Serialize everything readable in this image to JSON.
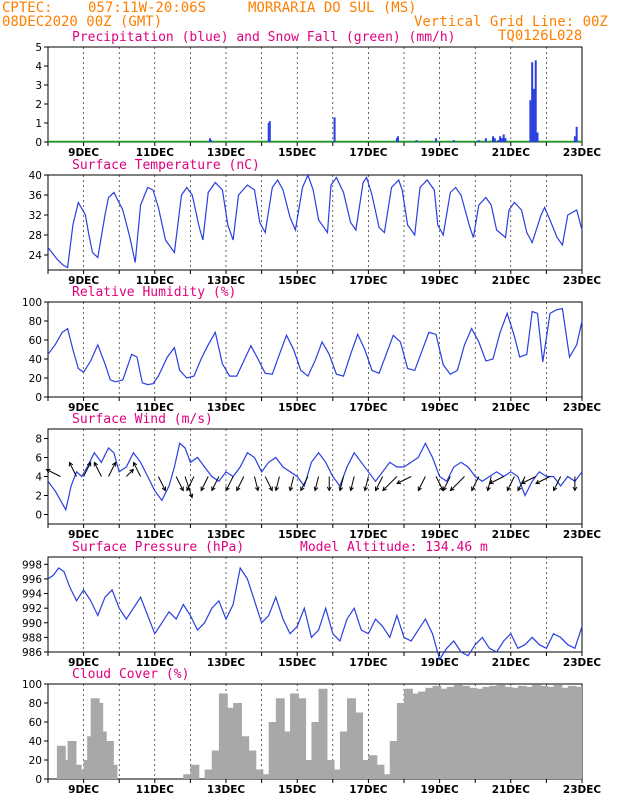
{
  "header": {
    "source": "CPTEC:",
    "coords": "057:11W-20:06S",
    "station": "MORRARIA DO SUL (MS)",
    "run": "08DEC2020 00Z (GMT)",
    "grid_note": "Vertical Grid Line: 00Z",
    "code": "TQ0126L028"
  },
  "colors": {
    "header": "#ff7f00",
    "panel_title": "#e0007f",
    "series": "#2a3fe0",
    "snow": "#1aa01a",
    "cloud": "#a8a8a8",
    "axis": "#000000"
  },
  "chart_data": [
    {
      "type": "bar",
      "title": "Precipitation (blue) and Snow Fall (green) (mm/h)",
      "ylim": [
        0,
        5
      ],
      "yticks": [
        "0",
        "1",
        "2",
        "3",
        "4",
        "5"
      ],
      "xticks": [
        "9DEC",
        "11DEC",
        "13DEC",
        "15DEC",
        "17DEC",
        "19DEC",
        "21DEC",
        "23DEC"
      ],
      "xrange_days": [
        8,
        23
      ],
      "series": [
        {
          "name": "Precipitation",
          "x": [
            12.55,
            12.58,
            14.2,
            14.23,
            16.05,
            17.8,
            17.83,
            18.35,
            18.9,
            19.4,
            20.1,
            20.3,
            20.5,
            20.55,
            20.65,
            20.7,
            20.75,
            20.8,
            20.85,
            21.55,
            21.6,
            21.65,
            21.7,
            21.75,
            22.8,
            22.85
          ],
          "values": [
            0.2,
            0.1,
            1.0,
            1.1,
            1.3,
            0.2,
            0.3,
            0.1,
            0.2,
            0.1,
            0.1,
            0.2,
            0.3,
            0.2,
            0.1,
            0.3,
            0.2,
            0.4,
            0.2,
            2.2,
            4.2,
            2.8,
            4.3,
            0.5,
            0.3,
            0.8
          ]
        },
        {
          "name": "Snow Fall",
          "x": [],
          "values": []
        }
      ]
    },
    {
      "type": "line",
      "title": "Surface Temperature (nC)",
      "ylim": [
        21,
        40
      ],
      "yticks": [
        "24",
        "28",
        "32",
        "36",
        "40"
      ],
      "xticks": [
        "9DEC",
        "11DEC",
        "13DEC",
        "15DEC",
        "17DEC",
        "19DEC",
        "21DEC",
        "23DEC"
      ],
      "xrange_days": [
        8,
        23
      ],
      "x": [
        8,
        8.25,
        8.42,
        8.55,
        8.7,
        8.85,
        9.05,
        9.15,
        9.25,
        9.4,
        9.6,
        9.7,
        9.85,
        10.1,
        10.3,
        10.45,
        10.6,
        10.8,
        10.95,
        11.1,
        11.3,
        11.55,
        11.75,
        11.9,
        12.05,
        12.25,
        12.35,
        12.5,
        12.7,
        12.9,
        13.05,
        13.2,
        13.35,
        13.6,
        13.8,
        13.95,
        14.1,
        14.3,
        14.45,
        14.6,
        14.8,
        14.95,
        15.15,
        15.3,
        15.45,
        15.6,
        15.85,
        15.95,
        16.1,
        16.3,
        16.5,
        16.65,
        16.85,
        16.95,
        17.1,
        17.3,
        17.45,
        17.65,
        17.85,
        17.95,
        18.1,
        18.3,
        18.45,
        18.65,
        18.85,
        18.95,
        19.1,
        19.3,
        19.45,
        19.6,
        19.85,
        19.95,
        20.1,
        20.3,
        20.45,
        20.6,
        20.85,
        20.95,
        21.1,
        21.3,
        21.45,
        21.6,
        21.85,
        21.95,
        22.1,
        22.3,
        22.45,
        22.6,
        22.85,
        23
      ],
      "values": [
        25.5,
        23.2,
        22.0,
        21.5,
        30.0,
        34.5,
        32.0,
        28.0,
        24.5,
        23.5,
        32.0,
        35.5,
        36.5,
        33.0,
        27.5,
        22.5,
        34.0,
        37.5,
        37.0,
        33.5,
        27.0,
        24.5,
        36.0,
        37.5,
        36.0,
        29.5,
        27.0,
        36.5,
        38.5,
        37.0,
        30.0,
        27.0,
        36.0,
        38.0,
        37.0,
        30.5,
        28.5,
        37.5,
        39.0,
        37.0,
        31.5,
        29.0,
        37.5,
        40.0,
        37.0,
        31.0,
        28.5,
        38.0,
        39.5,
        36.5,
        30.5,
        29.0,
        38.5,
        39.5,
        36.0,
        29.5,
        28.5,
        37.5,
        39.0,
        37.0,
        30.0,
        28.0,
        37.5,
        39.0,
        37.0,
        30.0,
        28.0,
        36.5,
        37.5,
        36.0,
        29.5,
        27.5,
        34.0,
        35.5,
        34.0,
        29.0,
        27.5,
        33.0,
        34.5,
        33.0,
        28.5,
        26.5,
        32.0,
        33.5,
        31.0,
        27.5,
        26.0,
        32.0,
        33.0,
        29.0
      ]
    },
    {
      "type": "line",
      "title": "Relative Humidity (%)",
      "ylim": [
        0,
        100
      ],
      "yticks": [
        "0",
        "20",
        "40",
        "60",
        "80",
        "100"
      ],
      "xticks": [
        "9DEC",
        "11DEC",
        "13DEC",
        "15DEC",
        "17DEC",
        "19DEC",
        "21DEC",
        "23DEC"
      ],
      "xrange_days": [
        8,
        23
      ],
      "x": [
        8,
        8.2,
        8.4,
        8.55,
        8.7,
        8.85,
        9.0,
        9.2,
        9.4,
        9.6,
        9.75,
        9.9,
        10.1,
        10.35,
        10.5,
        10.65,
        10.8,
        10.95,
        11.1,
        11.35,
        11.55,
        11.7,
        11.9,
        12.1,
        12.3,
        12.5,
        12.7,
        12.9,
        13.1,
        13.3,
        13.55,
        13.7,
        13.9,
        14.1,
        14.3,
        14.5,
        14.7,
        14.9,
        15.1,
        15.3,
        15.5,
        15.7,
        15.9,
        16.1,
        16.3,
        16.5,
        16.7,
        16.9,
        17.1,
        17.3,
        17.5,
        17.7,
        17.9,
        18.1,
        18.3,
        18.5,
        18.7,
        18.9,
        19.1,
        19.3,
        19.5,
        19.7,
        19.9,
        20.1,
        20.3,
        20.5,
        20.7,
        20.9,
        21.1,
        21.25,
        21.45,
        21.6,
        21.75,
        21.9,
        22.1,
        22.3,
        22.45,
        22.65,
        22.85,
        23
      ],
      "values": [
        45,
        55,
        68,
        72,
        50,
        30,
        26,
        38,
        55,
        35,
        18,
        16,
        18,
        45,
        42,
        15,
        13,
        14,
        22,
        42,
        52,
        28,
        20,
        22,
        40,
        55,
        68,
        35,
        22,
        22,
        42,
        54,
        40,
        25,
        24,
        45,
        65,
        50,
        28,
        22,
        38,
        58,
        45,
        24,
        22,
        45,
        66,
        50,
        28,
        25,
        45,
        65,
        58,
        30,
        28,
        48,
        68,
        66,
        34,
        24,
        28,
        55,
        72,
        58,
        38,
        40,
        68,
        88,
        64,
        42,
        45,
        90,
        88,
        37,
        88,
        92,
        93,
        42,
        55,
        80
      ]
    },
    {
      "type": "line",
      "title": "Surface Wind (m/s)",
      "ylim": [
        -1,
        9
      ],
      "yticks": [
        "0",
        "2",
        "4",
        "6",
        "8"
      ],
      "xticks": [
        "9DEC",
        "11DEC",
        "13DEC",
        "15DEC",
        "17DEC",
        "19DEC",
        "21DEC",
        "23DEC"
      ],
      "xrange_days": [
        8,
        23
      ],
      "x": [
        8,
        8.2,
        8.35,
        8.5,
        8.65,
        8.8,
        8.95,
        9.1,
        9.3,
        9.5,
        9.7,
        9.85,
        10.0,
        10.2,
        10.4,
        10.6,
        10.8,
        11.0,
        11.2,
        11.4,
        11.55,
        11.7,
        11.85,
        12.0,
        12.2,
        12.4,
        12.6,
        12.8,
        13.0,
        13.2,
        13.4,
        13.6,
        13.8,
        14.0,
        14.2,
        14.4,
        14.6,
        14.8,
        15.0,
        15.2,
        15.4,
        15.6,
        15.8,
        16.0,
        16.2,
        16.4,
        16.6,
        16.8,
        17.0,
        17.2,
        17.4,
        17.6,
        17.8,
        18.0,
        18.2,
        18.4,
        18.6,
        18.8,
        19.0,
        19.2,
        19.4,
        19.6,
        19.8,
        20.0,
        20.2,
        20.4,
        20.6,
        20.8,
        21.0,
        21.2,
        21.4,
        21.6,
        21.8,
        22.0,
        22.2,
        22.4,
        22.6,
        22.8,
        23
      ],
      "values": [
        3.5,
        2.5,
        1.5,
        0.5,
        3.0,
        4.5,
        4.0,
        5.0,
        6.5,
        5.5,
        7.0,
        6.5,
        4.5,
        5.0,
        6.5,
        5.5,
        4.0,
        2.5,
        1.5,
        3.0,
        5.0,
        7.5,
        7.0,
        5.5,
        6.0,
        5.0,
        4.0,
        3.5,
        4.5,
        4.0,
        5.0,
        6.5,
        6.0,
        4.5,
        5.5,
        6.0,
        5.0,
        4.5,
        4.0,
        3.0,
        5.5,
        6.5,
        5.5,
        4.0,
        3.0,
        5.0,
        6.5,
        5.5,
        4.5,
        3.5,
        4.5,
        5.5,
        5.0,
        5.0,
        5.5,
        6.0,
        7.5,
        6.0,
        4.0,
        3.5,
        5.0,
        5.5,
        5.0,
        4.0,
        3.5,
        4.0,
        4.5,
        4.0,
        4.5,
        4.0,
        2.0,
        3.5,
        4.5,
        4.0,
        4.0,
        3.0,
        4.0,
        3.5,
        4.5
      ],
      "vectors": {
        "x": [
          8.35,
          8.8,
          9.0,
          9.5,
          9.7,
          10.2,
          10.6,
          11.1,
          11.6,
          11.85,
          12.1,
          12.5,
          12.8,
          13.2,
          13.5,
          13.8,
          14.1,
          14.5,
          14.9,
          15.3,
          15.6,
          15.9,
          16.3,
          16.6,
          17.0,
          17.4,
          17.8,
          18.2,
          18.6,
          18.9,
          19.3,
          19.7,
          20.1,
          20.45,
          20.8,
          21.1,
          21.4,
          21.7,
          22.1,
          22.4,
          22.8
        ],
        "u": [
          -2,
          -1,
          1,
          -1,
          1,
          1,
          -1,
          1,
          1,
          1,
          -1,
          -1,
          -1,
          -1,
          -1,
          0.5,
          1,
          -0.5,
          -0.5,
          -1,
          -0.5,
          0,
          -0.5,
          -0.5,
          -0.5,
          -1,
          -2,
          -2,
          -1,
          1,
          -1,
          -2,
          -1,
          -0.5,
          -2,
          -1,
          -1,
          -2,
          -2,
          -1,
          0
        ],
        "v": [
          1,
          2,
          2,
          2,
          2,
          1,
          2,
          -2,
          -2,
          -3,
          -2,
          -2,
          -2,
          -2,
          -2,
          -2,
          -2,
          -2,
          -2,
          -2,
          -2,
          -2,
          -2,
          -2,
          -2,
          -2,
          -2,
          -1,
          -2,
          -2,
          -2,
          -2,
          -2,
          -2,
          -1,
          -2,
          -2,
          -1,
          -1,
          -2,
          -2
        ]
      }
    },
    {
      "type": "line",
      "title": "Surface Pressure (hPa)",
      "subtitle": "Model Altitude: 134.46 m",
      "ylim": [
        986,
        999
      ],
      "yticks": [
        "986",
        "988",
        "990",
        "992",
        "994",
        "996",
        "998"
      ],
      "xticks": [
        "9DEC",
        "11DEC",
        "13DEC",
        "15DEC",
        "17DEC",
        "19DEC",
        "21DEC",
        "23DEC"
      ],
      "xrange_days": [
        8,
        23
      ],
      "x": [
        8,
        8.15,
        8.3,
        8.45,
        8.6,
        8.8,
        9.0,
        9.2,
        9.4,
        9.6,
        9.8,
        10.0,
        10.2,
        10.4,
        10.6,
        10.8,
        11.0,
        11.2,
        11.4,
        11.6,
        11.8,
        12.0,
        12.2,
        12.4,
        12.6,
        12.8,
        13.0,
        13.2,
        13.4,
        13.6,
        13.8,
        14.0,
        14.2,
        14.4,
        14.6,
        14.8,
        15.0,
        15.2,
        15.4,
        15.6,
        15.8,
        16.0,
        16.2,
        16.4,
        16.6,
        16.8,
        17.0,
        17.2,
        17.4,
        17.6,
        17.8,
        18.0,
        18.2,
        18.4,
        18.6,
        18.8,
        19.0,
        19.2,
        19.4,
        19.6,
        19.8,
        20.0,
        20.2,
        20.4,
        20.6,
        20.8,
        21.0,
        21.2,
        21.4,
        21.6,
        21.8,
        22.0,
        22.2,
        22.4,
        22.6,
        22.8,
        23
      ],
      "values": [
        996.0,
        996.5,
        997.5,
        997.0,
        995.0,
        993.0,
        994.5,
        993.0,
        991.0,
        993.5,
        994.5,
        992.0,
        990.5,
        992.0,
        993.5,
        991.0,
        988.5,
        990.0,
        991.5,
        990.5,
        992.5,
        991.0,
        989.0,
        990.0,
        992.0,
        993.0,
        990.5,
        992.5,
        997.5,
        996.0,
        993.0,
        990.0,
        991.0,
        993.5,
        990.5,
        988.5,
        989.5,
        992.0,
        988.0,
        989.0,
        992.0,
        988.5,
        987.5,
        990.5,
        992.0,
        989.0,
        988.5,
        990.5,
        989.5,
        988.0,
        991.0,
        988.0,
        987.5,
        989.0,
        990.5,
        988.5,
        985.0,
        986.5,
        987.5,
        986.0,
        985.5,
        987.0,
        988.0,
        986.5,
        986.0,
        987.5,
        988.5,
        986.5,
        987.0,
        988.0,
        987.0,
        986.5,
        988.5,
        988.0,
        987.0,
        986.5,
        989.5
      ]
    },
    {
      "type": "bar",
      "title": "Cloud Cover (%)",
      "ylim": [
        0,
        100
      ],
      "yticks": [
        "0",
        "20",
        "40",
        "60",
        "80",
        "100"
      ],
      "xticks": [
        "9DEC",
        "11DEC",
        "13DEC",
        "15DEC",
        "17DEC",
        "19DEC",
        "21DEC",
        "23DEC"
      ],
      "xrange_days": [
        8,
        23
      ],
      "x": [
        8,
        8.25,
        8.4,
        8.55,
        8.7,
        8.85,
        9.0,
        9.1,
        9.2,
        9.3,
        9.4,
        9.5,
        9.6,
        9.7,
        9.8,
        10.0,
        10.2,
        10.4,
        10.6,
        10.8,
        11.0,
        11.2,
        11.4,
        11.6,
        11.8,
        12.0,
        12.2,
        12.4,
        12.6,
        12.8,
        13.0,
        13.2,
        13.4,
        13.6,
        13.8,
        14.0,
        14.2,
        14.4,
        14.6,
        14.8,
        15.0,
        15.2,
        15.4,
        15.6,
        15.8,
        16.0,
        16.2,
        16.4,
        16.6,
        16.8,
        17.0,
        17.2,
        17.4,
        17.6,
        17.8,
        18.0,
        18.2,
        18.4,
        18.6,
        18.8,
        19.0,
        19.2,
        19.4,
        19.6,
        19.8,
        20.0,
        20.2,
        20.4,
        20.6,
        20.8,
        21.0,
        21.2,
        21.4,
        21.6,
        21.8,
        22.0,
        22.2,
        22.4,
        22.6,
        22.8,
        23
      ],
      "values": [
        0,
        35,
        20,
        40,
        15,
        10,
        20,
        45,
        85,
        80,
        50,
        20,
        40,
        15,
        0,
        0,
        0,
        0,
        0,
        0,
        0,
        0,
        0,
        0,
        5,
        15,
        0,
        10,
        30,
        90,
        75,
        80,
        45,
        30,
        10,
        5,
        60,
        85,
        50,
        90,
        85,
        20,
        60,
        95,
        20,
        10,
        50,
        85,
        70,
        20,
        25,
        15,
        5,
        40,
        80,
        95,
        90,
        92,
        96,
        98,
        95,
        97,
        99,
        98,
        96,
        95,
        97,
        98,
        99,
        97,
        96,
        98,
        97,
        99,
        98,
        97,
        99,
        96,
        98,
        97,
        96
      ]
    }
  ]
}
